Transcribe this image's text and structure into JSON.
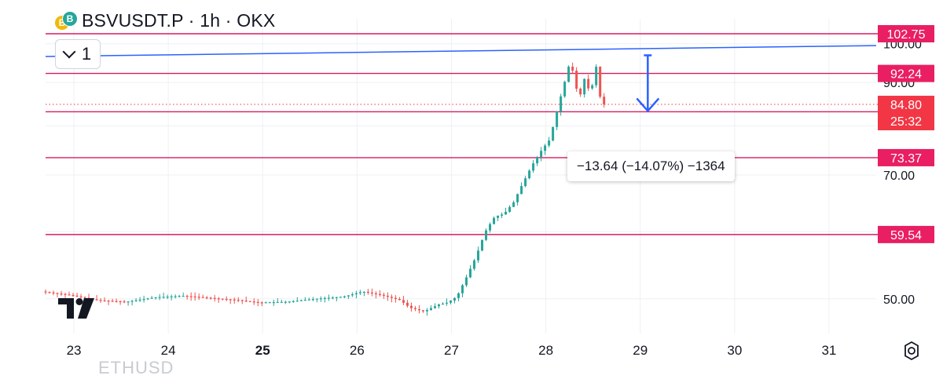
{
  "header": {
    "title": "BSVUSDT.P · 1h · OKX",
    "icon_primary_letter": "B",
    "icon_secondary_letter": "B"
  },
  "indicator_toggle": {
    "count": "1"
  },
  "measure_label": "−13.64 (−14.07%) −1364",
  "faded_text": "ETHUSD",
  "colors": {
    "up": "#26a69a",
    "down": "#ef5350",
    "level_line": "#d81b60",
    "trend_line": "#2962ff",
    "label_bg": "#e91e63",
    "price_bg": "#f23645",
    "grid": "#eef0f3",
    "axis_text": "#131722"
  },
  "chart_data": {
    "type": "candlestick",
    "x_ticks": [
      {
        "label": "23",
        "day": 23,
        "bold": false
      },
      {
        "label": "24",
        "day": 24,
        "bold": false
      },
      {
        "label": "25",
        "day": 25,
        "bold": true
      },
      {
        "label": "26",
        "day": 26,
        "bold": false
      },
      {
        "label": "27",
        "day": 27,
        "bold": false
      },
      {
        "label": "28",
        "day": 28,
        "bold": false
      },
      {
        "label": "29",
        "day": 29,
        "bold": false
      },
      {
        "label": "30",
        "day": 30,
        "bold": false
      },
      {
        "label": "31",
        "day": 31,
        "bold": false
      }
    ],
    "x_range": [
      22.7,
      31.5
    ],
    "y_scale": "log",
    "y_range": [
      45.5,
      107
    ],
    "y_ticks": [
      {
        "value": 100,
        "label": "100.00"
      },
      {
        "value": 90,
        "label": "90.00"
      },
      {
        "value": 70,
        "label": "70.00"
      },
      {
        "value": 50,
        "label": "50.00"
      }
    ],
    "horizontal_levels": [
      {
        "value": 102.75,
        "label": "102.75"
      },
      {
        "value": 92.24,
        "label": "92.24"
      },
      {
        "value": 83.11,
        "label": "83.11"
      },
      {
        "value": 73.37,
        "label": "73.37"
      },
      {
        "value": 59.54,
        "label": "59.54"
      }
    ],
    "current_price": {
      "value": 84.8,
      "label": "84.80",
      "countdown": "25:32"
    },
    "trend_line": {
      "start": {
        "day": 22.7,
        "price": 96.6
      },
      "end": {
        "day": 31.5,
        "price": 99.5
      }
    },
    "measure_arrow": {
      "day": 29.08,
      "from_price": 96.9,
      "to_price": 83.3
    },
    "price_path": [
      [
        22.7,
        51.0
      ],
      [
        23.0,
        50.5
      ],
      [
        23.3,
        49.8
      ],
      [
        23.6,
        49.6
      ],
      [
        23.9,
        50.2
      ],
      [
        24.2,
        50.4
      ],
      [
        24.5,
        50.1
      ],
      [
        24.8,
        49.8
      ],
      [
        25.0,
        49.5
      ],
      [
        25.3,
        49.6
      ],
      [
        25.6,
        50.0
      ],
      [
        25.9,
        50.3
      ],
      [
        26.1,
        51.0
      ],
      [
        26.3,
        50.5
      ],
      [
        26.5,
        49.8
      ],
      [
        26.6,
        48.8
      ],
      [
        26.75,
        48.3
      ],
      [
        26.9,
        49.2
      ],
      [
        27.0,
        49.5
      ],
      [
        27.1,
        50.3
      ],
      [
        27.2,
        53.0
      ],
      [
        27.3,
        56.0
      ],
      [
        27.4,
        60.0
      ],
      [
        27.5,
        62.5
      ],
      [
        27.6,
        63.0
      ],
      [
        27.7,
        65.0
      ],
      [
        27.8,
        68.5
      ],
      [
        27.9,
        72.0
      ],
      [
        28.0,
        75.0
      ],
      [
        28.08,
        77.0
      ],
      [
        28.12,
        80.0
      ],
      [
        28.18,
        85.0
      ],
      [
        28.24,
        90.0
      ],
      [
        28.28,
        94.0
      ],
      [
        28.32,
        93.5
      ],
      [
        28.36,
        89.0
      ],
      [
        28.4,
        86.0
      ],
      [
        28.44,
        91.5
      ],
      [
        28.48,
        89.0
      ],
      [
        28.52,
        87.5
      ],
      [
        28.56,
        93.0
      ],
      [
        28.6,
        95.5
      ],
      [
        28.62,
        84.8
      ]
    ]
  }
}
